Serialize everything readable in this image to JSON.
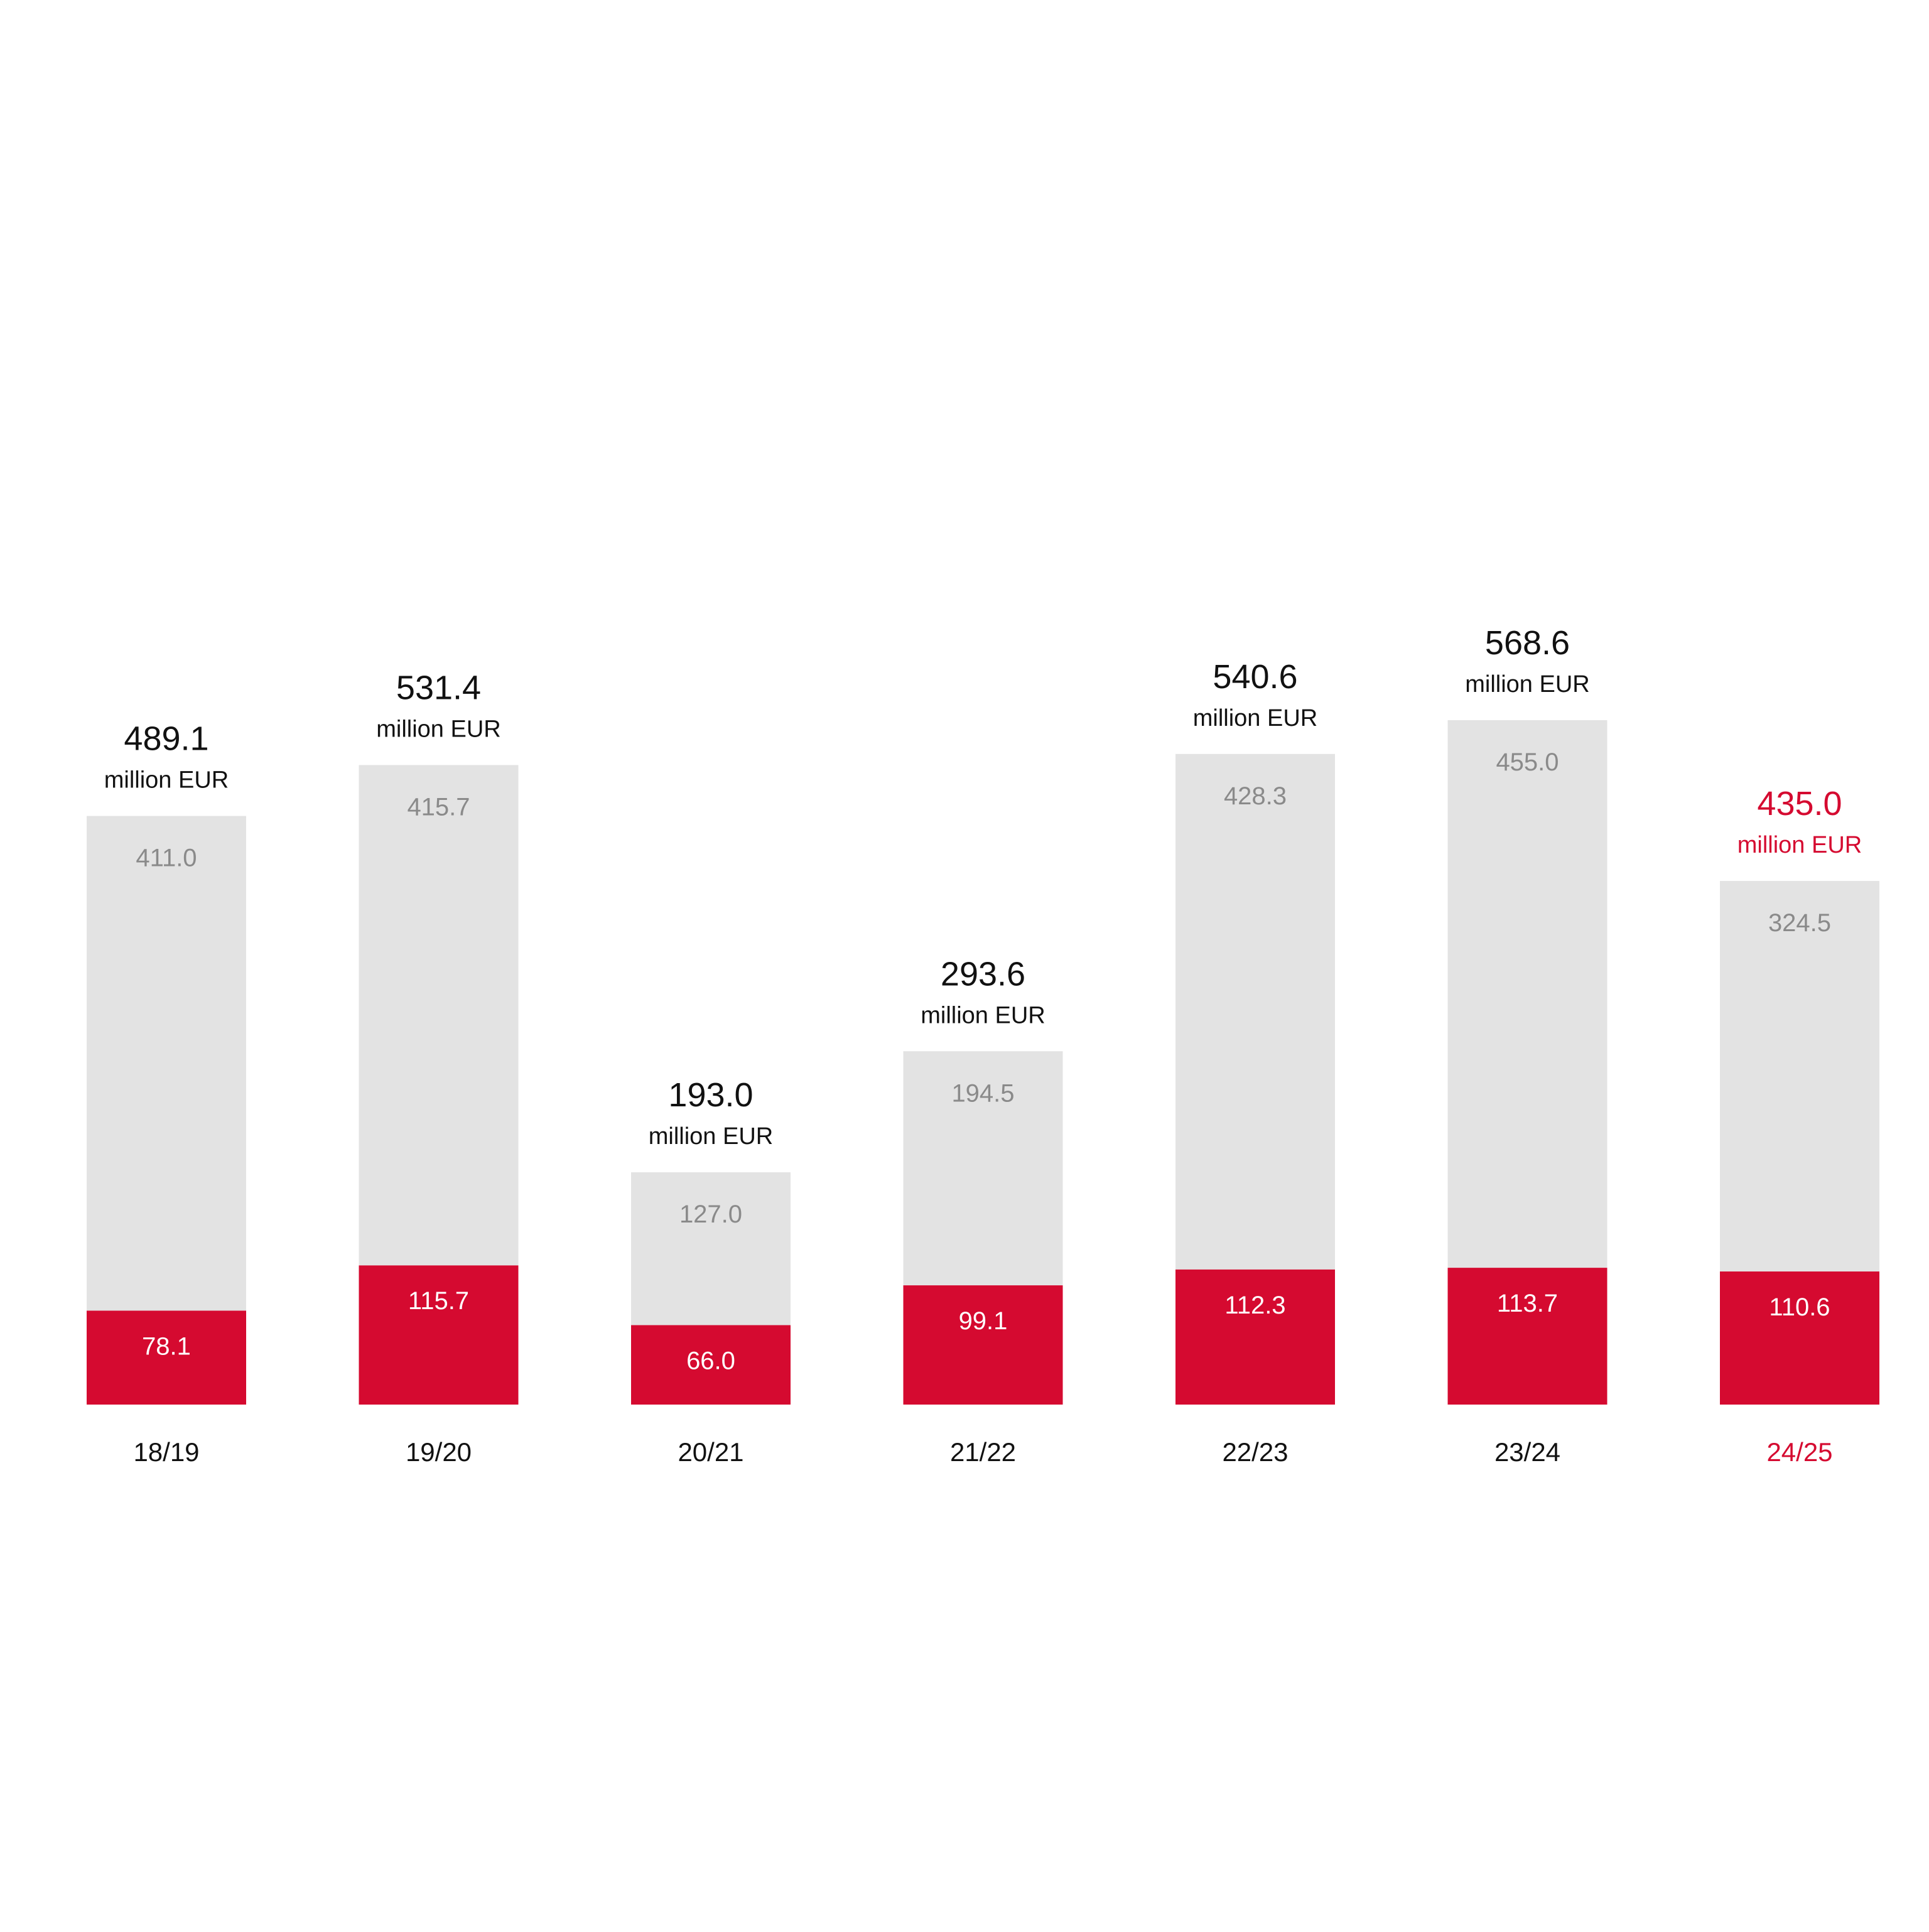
{
  "chart_data": {
    "type": "bar",
    "stacked": true,
    "title": "",
    "xlabel": "",
    "ylabel": "",
    "unit": "million EUR",
    "categories": [
      "18/19",
      "19/20",
      "20/21",
      "21/22",
      "22/23",
      "23/24",
      "24/25"
    ],
    "series": [
      {
        "color": "#D50A30",
        "values": [
          78.1,
          115.7,
          66.0,
          99.1,
          112.3,
          113.7,
          110.6
        ]
      },
      {
        "color": "#E3E3E3",
        "values": [
          411.0,
          415.7,
          127.0,
          194.5,
          428.3,
          455.0,
          324.5
        ]
      }
    ],
    "value_labels": {
      "series_0": [
        "78.1",
        "115.7",
        "66.0",
        "99.1",
        "112.3",
        "113.7",
        "110.6"
      ],
      "series_1": [
        "411.0",
        "415.7",
        "127.0",
        "194.5",
        "428.3",
        "455.0",
        "324.5"
      ]
    },
    "totals": [
      "489.1",
      "531.4",
      "193.0",
      "293.6",
      "540.6",
      "568.6",
      "435.0"
    ],
    "highlight_index": 6,
    "colors": {
      "highlight": "#D50A30",
      "total_text": "#111111",
      "gray_label": "#8A8A8A",
      "red_label": "#FFFFFF"
    },
    "grid": false,
    "legend": "none"
  }
}
